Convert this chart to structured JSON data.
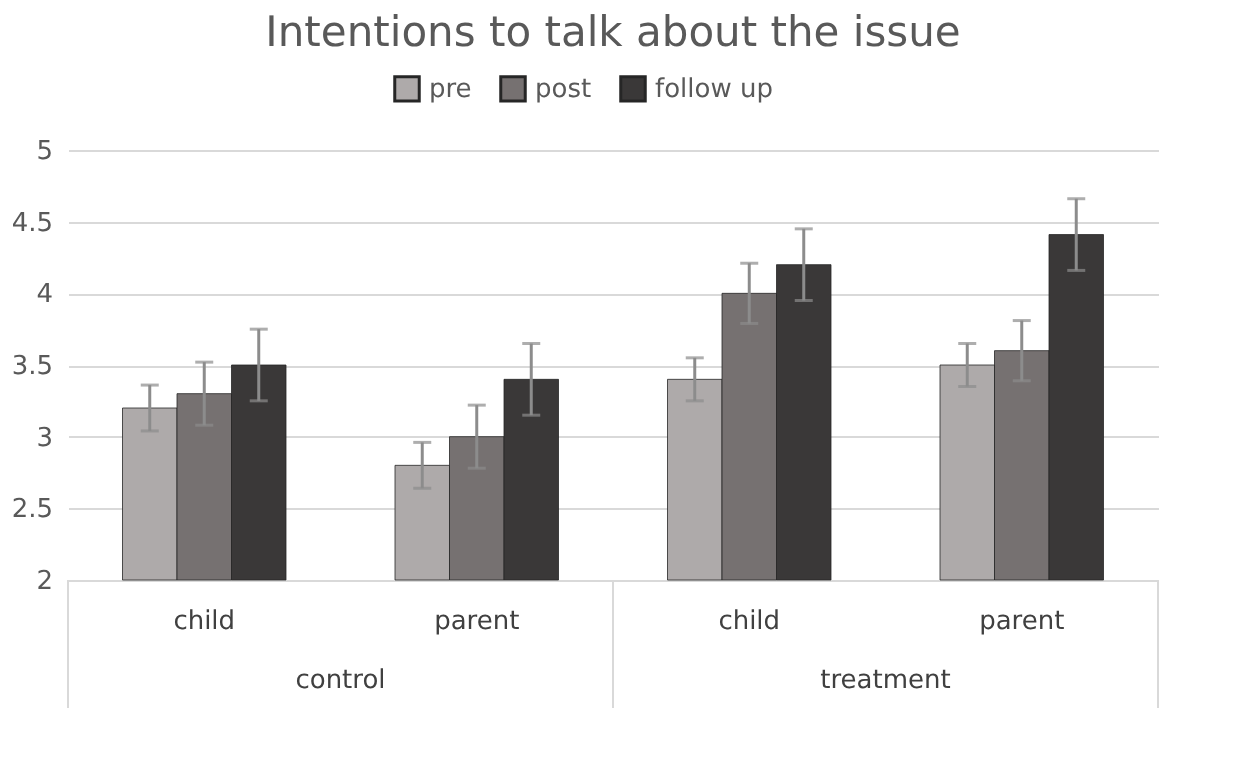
{
  "chart_data": {
    "type": "bar",
    "title": "Intentions to talk about the issue",
    "categories": [
      "child",
      "parent",
      "child",
      "parent"
    ],
    "annotations": [
      "control",
      "treatment"
    ],
    "series": [
      {
        "name": "pre",
        "color": "#aeaaaa",
        "values": [
          3.2,
          2.8,
          3.4,
          3.5
        ],
        "errors": [
          0.16,
          0.16,
          0.15,
          0.15
        ]
      },
      {
        "name": "post",
        "color": "#767171",
        "values": [
          3.3,
          3.0,
          4.0,
          3.6
        ],
        "errors": [
          0.22,
          0.22,
          0.21,
          0.21
        ]
      },
      {
        "name": "follow up",
        "color": "#3a3838",
        "values": [
          3.5,
          3.4,
          4.2,
          4.41
        ],
        "errors": [
          0.25,
          0.25,
          0.25,
          0.25
        ]
      }
    ],
    "ylim": [
      2,
      5
    ],
    "yticks": [
      2,
      2.5,
      3,
      3.5,
      4,
      4.5,
      5
    ],
    "grid": "y",
    "legend": "top"
  }
}
